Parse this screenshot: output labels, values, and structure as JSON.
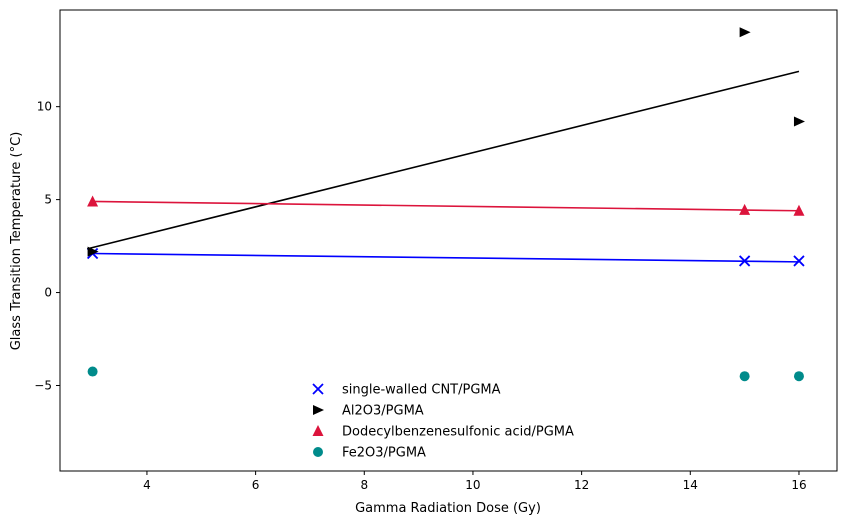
{
  "chart_data": {
    "type": "scatter",
    "xlabel": "Gamma Radiation Dose (Gy)",
    "ylabel": "Glass Transition Temperature (°C)",
    "xlim": [
      2.4,
      16.7
    ],
    "ylim": [
      -9.6,
      15.2
    ],
    "xticks": [
      4,
      6,
      8,
      10,
      12,
      14,
      16
    ],
    "yticks": [
      -5,
      0,
      5,
      10
    ],
    "grid": false,
    "legend_position": "lower center",
    "series": [
      {
        "name": "single-walled CNT/PGMA",
        "marker": "x",
        "color": "#0000ff",
        "points": [
          {
            "x": 3,
            "y": 2.1
          },
          {
            "x": 15,
            "y": 1.7
          },
          {
            "x": 16,
            "y": 1.7
          }
        ],
        "fit": [
          {
            "x": 3,
            "y": 2.1
          },
          {
            "x": 16,
            "y": 1.65
          }
        ]
      },
      {
        "name": "Al2O3/PGMA",
        "marker": "triangle-right",
        "color": "#000000",
        "points": [
          {
            "x": 3,
            "y": 2.2
          },
          {
            "x": 15,
            "y": 14.0
          },
          {
            "x": 16,
            "y": 9.2
          }
        ],
        "fit": [
          {
            "x": 2.9,
            "y": 2.35
          },
          {
            "x": 16,
            "y": 11.9
          }
        ]
      },
      {
        "name": "Dodecylbenzenesulfonic acid/PGMA",
        "marker": "triangle-up",
        "color": "#dc143c",
        "points": [
          {
            "x": 3,
            "y": 4.9
          },
          {
            "x": 15,
            "y": 4.45
          },
          {
            "x": 16,
            "y": 4.4
          }
        ],
        "fit": [
          {
            "x": 3,
            "y": 4.9
          },
          {
            "x": 16,
            "y": 4.4
          }
        ]
      },
      {
        "name": "Fe2O3/PGMA",
        "marker": "circle",
        "color": "#008b8b",
        "points": [
          {
            "x": 3,
            "y": -4.25
          },
          {
            "x": 15,
            "y": -4.5
          },
          {
            "x": 16,
            "y": -4.5
          }
        ]
      }
    ]
  }
}
